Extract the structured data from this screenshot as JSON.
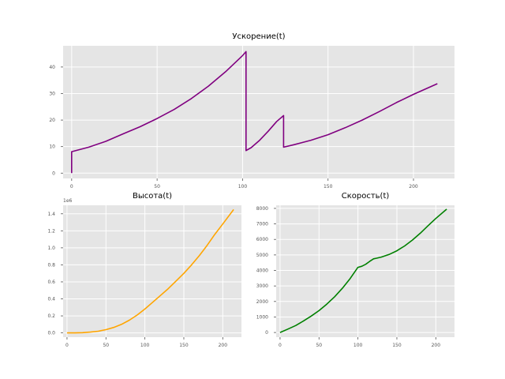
{
  "chart_data": [
    {
      "type": "line",
      "title": "Ускорение(t)",
      "xlabel": "",
      "ylabel": "",
      "xlim": [
        -5,
        224
      ],
      "ylim": [
        -2,
        48
      ],
      "xticks": [
        0,
        50,
        100,
        150,
        200
      ],
      "yticks": [
        0,
        10,
        20,
        30,
        40
      ],
      "grid": true,
      "series": [
        {
          "color": "#800080",
          "x": [
            0,
            0,
            10,
            20,
            30,
            40,
            50,
            60,
            70,
            80,
            90,
            100,
            102,
            102,
            105,
            110,
            115,
            120,
            124,
            124,
            130,
            140,
            150,
            160,
            170,
            180,
            190,
            200,
            214
          ],
          "y": [
            0,
            8.1,
            9.8,
            12.0,
            14.8,
            17.5,
            20.6,
            24.0,
            28.1,
            32.8,
            38.2,
            44.3,
            45.8,
            8.5,
            9.6,
            12.4,
            15.8,
            19.5,
            21.7,
            9.8,
            10.7,
            12.4,
            14.5,
            17.1,
            20.0,
            23.2,
            26.6,
            29.7,
            33.7
          ]
        }
      ]
    },
    {
      "type": "line",
      "title": "Высота(t)",
      "xlabel": "",
      "ylabel": "",
      "offset_text": "1e6",
      "xlim": [
        -5,
        224
      ],
      "ylim": [
        -0.05,
        1.5
      ],
      "xticks": [
        0,
        50,
        100,
        150,
        200
      ],
      "yticks": [
        0.0,
        0.2,
        0.4,
        0.6,
        0.8,
        1.0,
        1.2,
        1.4
      ],
      "ytick_labels": [
        "0.0",
        "0.2",
        "0.4",
        "0.6",
        "0.8",
        "1.0",
        "1.2",
        "1.4"
      ],
      "grid": true,
      "series": [
        {
          "color": "#ffa500",
          "x": [
            0,
            10,
            20,
            30,
            40,
            50,
            60,
            70,
            80,
            90,
            100,
            110,
            120,
            130,
            140,
            150,
            160,
            170,
            180,
            190,
            200,
            214
          ],
          "y": [
            0.0,
            0.0005,
            0.003,
            0.009,
            0.02,
            0.038,
            0.064,
            0.1,
            0.15,
            0.21,
            0.28,
            0.36,
            0.44,
            0.52,
            0.61,
            0.7,
            0.8,
            0.91,
            1.03,
            1.16,
            1.28,
            1.45
          ]
        }
      ]
    },
    {
      "type": "line",
      "title": "Скорость(t)",
      "xlabel": "",
      "ylabel": "",
      "xlim": [
        -5,
        224
      ],
      "ylim": [
        -300,
        8200
      ],
      "xticks": [
        0,
        50,
        100,
        150,
        200
      ],
      "yticks": [
        0,
        1000,
        2000,
        3000,
        4000,
        5000,
        6000,
        7000,
        8000
      ],
      "grid": true,
      "series": [
        {
          "color": "#008000",
          "x": [
            0,
            10,
            20,
            30,
            40,
            50,
            60,
            70,
            80,
            90,
            100,
            105,
            110,
            115,
            120,
            124,
            130,
            140,
            150,
            160,
            170,
            180,
            190,
            200,
            214
          ],
          "y": [
            0,
            220,
            450,
            740,
            1060,
            1410,
            1830,
            2300,
            2850,
            3480,
            4200,
            4270,
            4400,
            4580,
            4750,
            4790,
            4860,
            5030,
            5270,
            5580,
            5960,
            6400,
            6880,
            7350,
            7950
          ]
        }
      ]
    }
  ]
}
